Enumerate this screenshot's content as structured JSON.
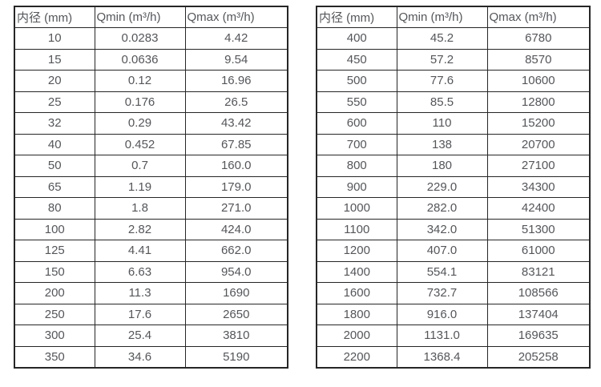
{
  "colors": {
    "text": "#54565a",
    "border": "#262626",
    "background": "#ffffff"
  },
  "tables": [
    {
      "headers": [
        "内径 (mm)",
        "Qmin (m³/h)",
        "Qmax (m³/h)"
      ],
      "rows": [
        [
          "10",
          "0.0283",
          "4.42"
        ],
        [
          "15",
          "0.0636",
          "9.54"
        ],
        [
          "20",
          "0.12",
          "16.96"
        ],
        [
          "25",
          "0.176",
          "26.5"
        ],
        [
          "32",
          "0.29",
          "43.42"
        ],
        [
          "40",
          "0.452",
          "67.85"
        ],
        [
          "50",
          "0.7",
          "160.0"
        ],
        [
          "65",
          "1.19",
          "179.0"
        ],
        [
          "80",
          "1.8",
          "271.0"
        ],
        [
          "100",
          "2.82",
          "424.0"
        ],
        [
          "125",
          "4.41",
          "662.0"
        ],
        [
          "150",
          "6.63",
          "954.0"
        ],
        [
          "200",
          "11.3",
          "1690"
        ],
        [
          "250",
          "17.6",
          "2650"
        ],
        [
          "300",
          "25.4",
          "3810"
        ],
        [
          "350",
          "34.6",
          "5190"
        ]
      ]
    },
    {
      "headers": [
        "内径 (mm)",
        "Qmin (m³/h)",
        "Qmax (m³/h)"
      ],
      "rows": [
        [
          "400",
          "45.2",
          "6780"
        ],
        [
          "450",
          "57.2",
          "8570"
        ],
        [
          "500",
          "77.6",
          "10600"
        ],
        [
          "550",
          "85.5",
          "12800"
        ],
        [
          "600",
          "110",
          "15200"
        ],
        [
          "700",
          "138",
          "20700"
        ],
        [
          "800",
          "180",
          "27100"
        ],
        [
          "900",
          "229.0",
          "34300"
        ],
        [
          "1000",
          "282.0",
          "42400"
        ],
        [
          "1100",
          "342.0",
          "51300"
        ],
        [
          "1200",
          "407.0",
          "61000"
        ],
        [
          "1400",
          "554.1",
          "83121"
        ],
        [
          "1600",
          "732.7",
          "108566"
        ],
        [
          "1800",
          "916.0",
          "137404"
        ],
        [
          "2000",
          "1131.0",
          "169635"
        ],
        [
          "2200",
          "1368.4",
          "205258"
        ]
      ]
    }
  ]
}
